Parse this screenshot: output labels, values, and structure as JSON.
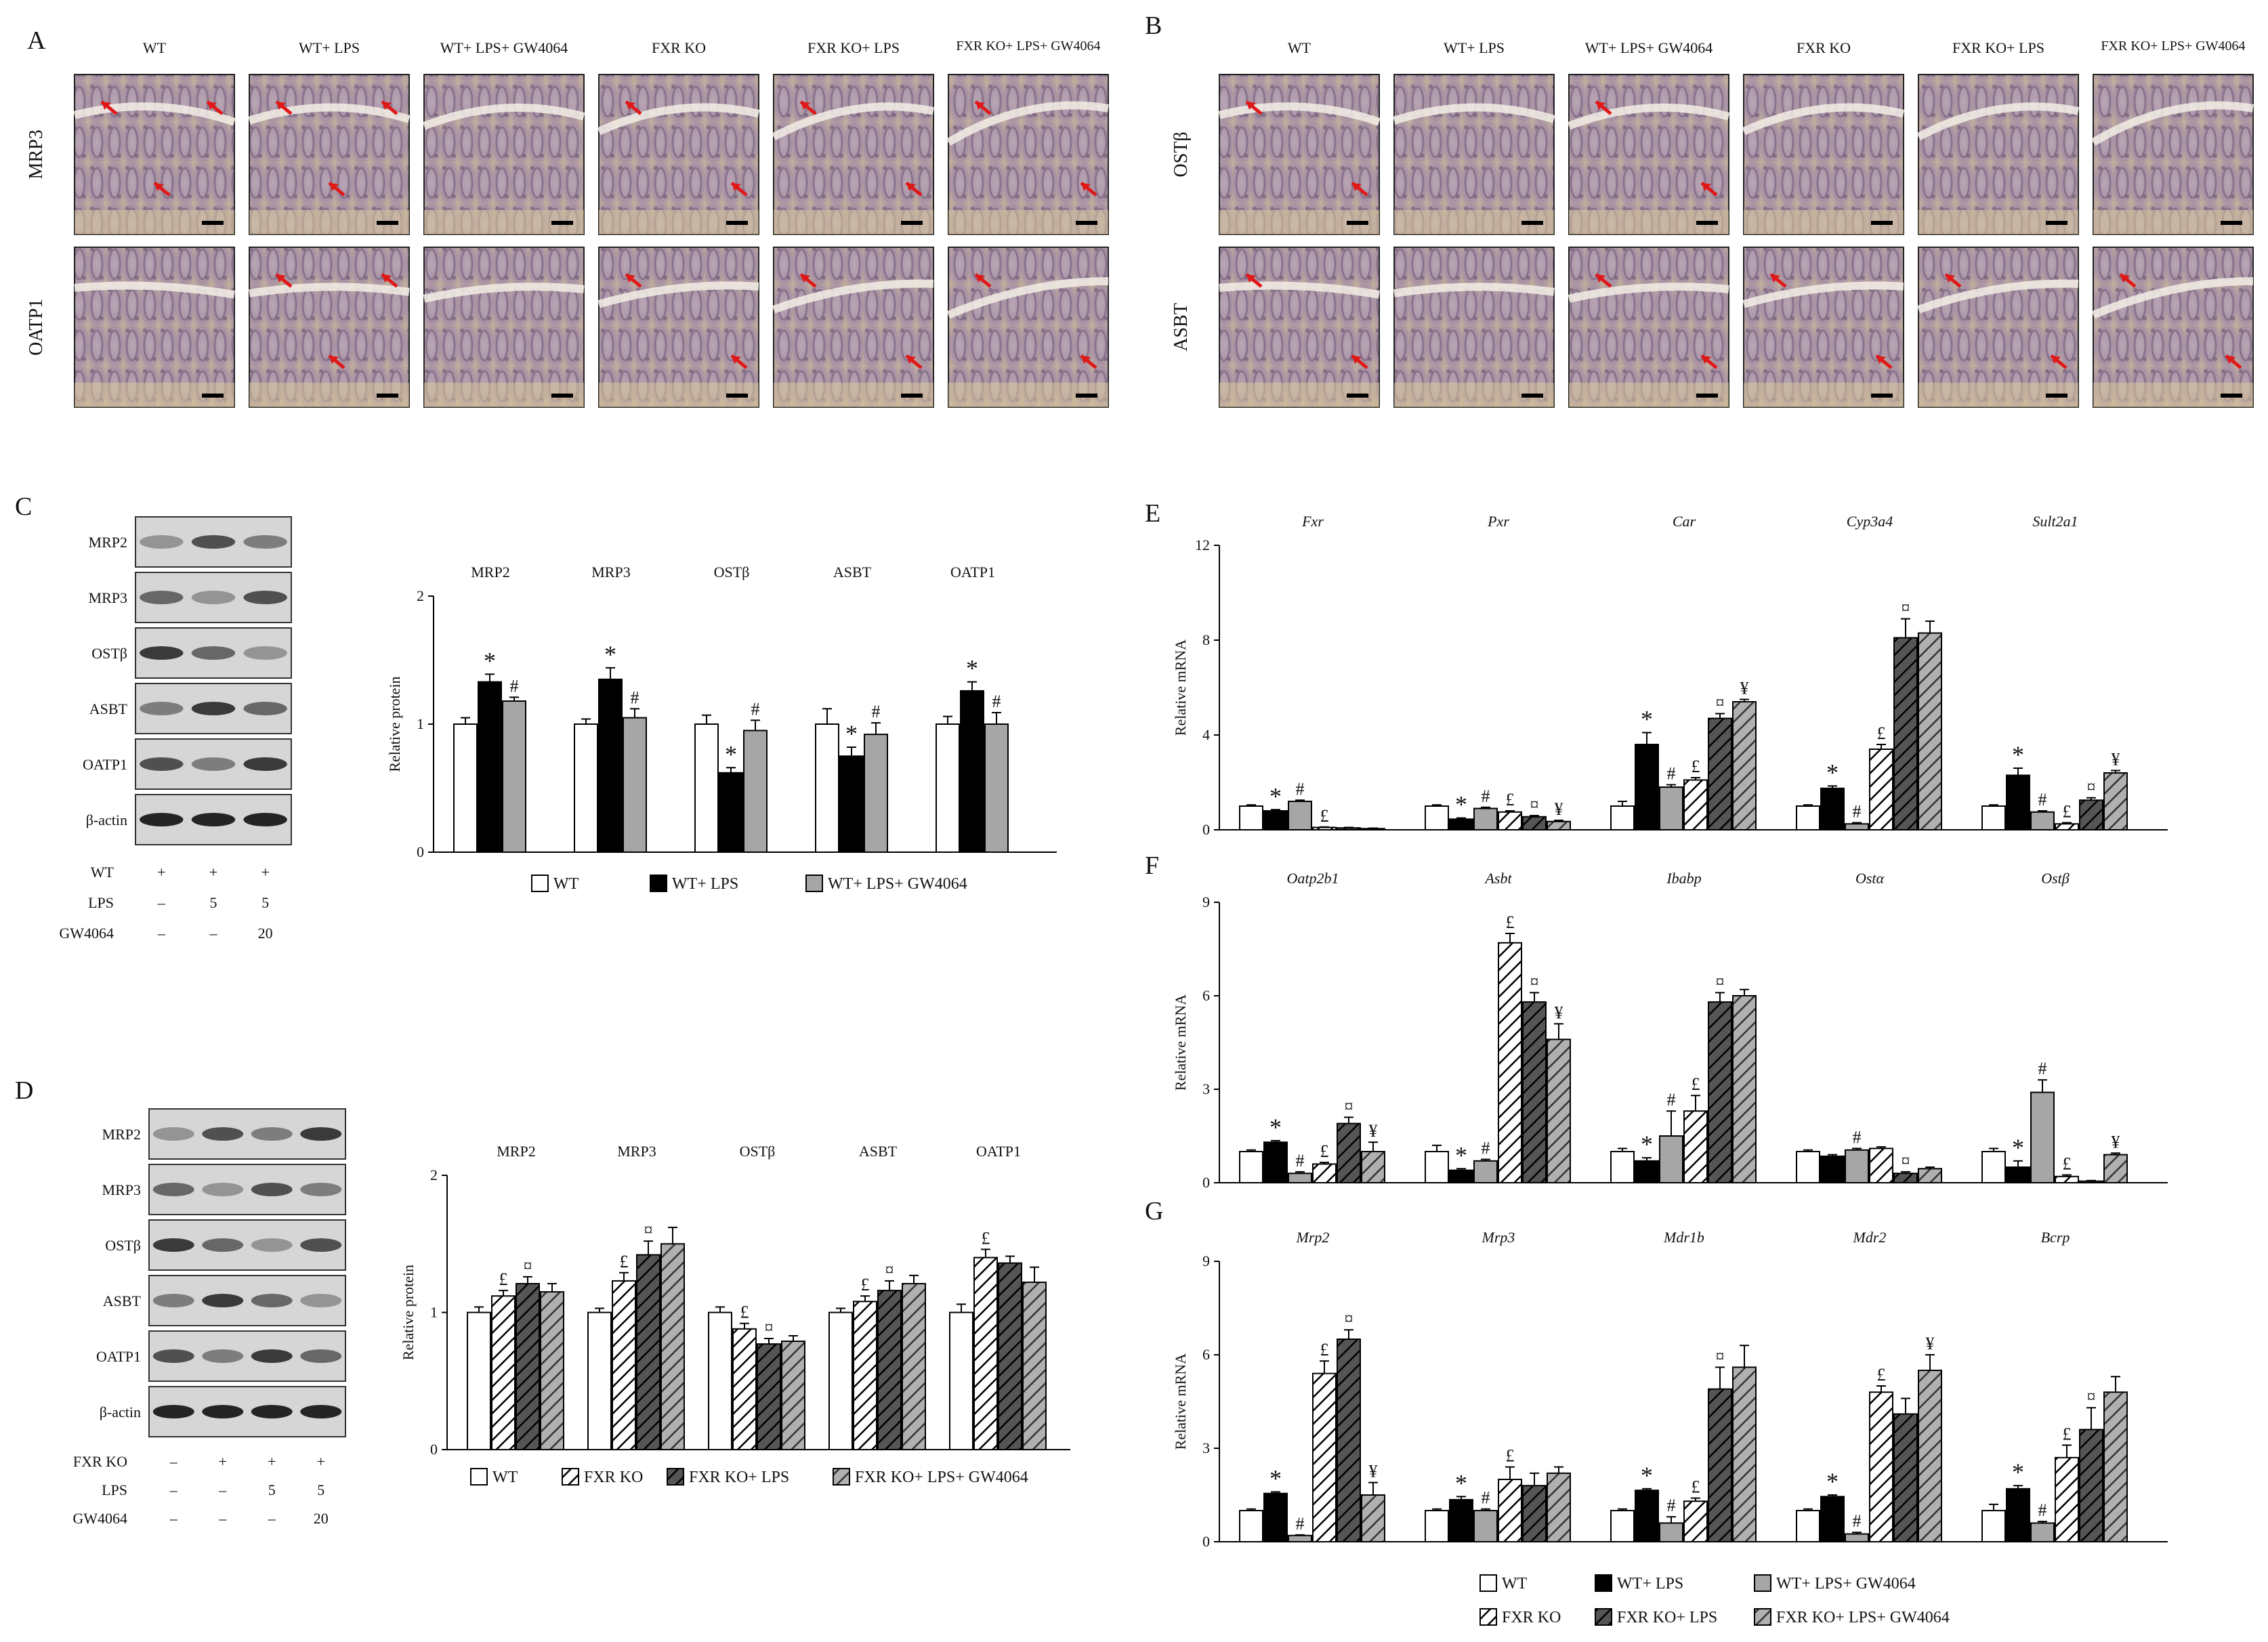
{
  "panels": {
    "A": "A",
    "B": "B",
    "C": "C",
    "D": "D",
    "E": "E",
    "F": "F",
    "G": "G"
  },
  "panel_A": {
    "columns": [
      "WT",
      "WT+ LPS",
      "WT+ LPS+ GW4064",
      "FXR KO",
      "FXR KO+ LPS",
      "FXR KO+ LPS+ GW4064"
    ],
    "rows": [
      "MRP3",
      "OATP1"
    ],
    "arrows_per_image": [
      [
        3,
        3,
        0,
        2,
        2,
        2
      ],
      [
        0,
        3,
        0,
        2,
        2,
        2
      ]
    ]
  },
  "panel_B": {
    "columns": [
      "WT",
      "WT+ LPS",
      "WT+ LPS+ GW4064",
      "FXR KO",
      "FXR KO+ LPS",
      "FXR KO+ LPS+ GW4064"
    ],
    "rows": [
      "OSTβ",
      "ASBT"
    ],
    "arrows_per_image": [
      [
        2,
        0,
        2,
        0,
        0,
        0
      ],
      [
        2,
        0,
        2,
        2,
        2,
        2
      ]
    ]
  },
  "panel_C": {
    "blot_labels": [
      "MRP2",
      "MRP3",
      "OSTβ",
      "ASBT",
      "OATP1",
      "β-actin"
    ],
    "conditions": [
      {
        "label": "WT",
        "values": [
          "+",
          "+",
          "+"
        ]
      },
      {
        "label": "LPS",
        "values": [
          "–",
          "5",
          "5"
        ]
      },
      {
        "label": "GW4064",
        "values": [
          "–",
          "–",
          "20"
        ]
      }
    ],
    "legend": [
      "WT",
      "WT+ LPS",
      "WT+ LPS+ GW4064"
    ]
  },
  "panel_D": {
    "blot_labels": [
      "MRP2",
      "MRP3",
      "OSTβ",
      "ASBT",
      "OATP1",
      "β-actin"
    ],
    "conditions": [
      {
        "label": "FXR KO",
        "values": [
          "–",
          "+",
          "+",
          "+"
        ]
      },
      {
        "label": "LPS",
        "values": [
          "–",
          "–",
          "5",
          "5"
        ]
      },
      {
        "label": "GW4064",
        "values": [
          "–",
          "–",
          "–",
          "20"
        ]
      }
    ],
    "legend": [
      "WT",
      "FXR KO",
      "FXR KO+ LPS",
      "FXR KO+ LPS+ GW4064"
    ]
  },
  "legend_EFG": [
    "WT",
    "WT+ LPS",
    "WT+ LPS+ GW4064",
    "FXR KO",
    "FXR KO+ LPS",
    "FXR KO+ LPS+ GW4064"
  ],
  "colors": {
    "wt": "#ffffff",
    "lps": "#000000",
    "gw": "#a6a6a6",
    "ko_hatch": "#ffffff",
    "ko_lps_hatch": "#555555",
    "ko_gw_hatch": "#b0b0b0",
    "arrow": "#e01818"
  },
  "chart_data": [
    {
      "id": "C",
      "type": "bar",
      "ylabel": "Relative protein",
      "ylim": [
        0,
        2
      ],
      "yticks": [
        0,
        1,
        2
      ],
      "categories": [
        "MRP2",
        "MRP3",
        "OSTβ",
        "ASBT",
        "OATP1"
      ],
      "series": [
        {
          "name": "WT",
          "values": [
            1.0,
            1.0,
            1.0,
            1.0,
            1.0
          ],
          "err": [
            0.05,
            0.04,
            0.07,
            0.12,
            0.06
          ]
        },
        {
          "name": "WT+ LPS",
          "values": [
            1.33,
            1.35,
            0.62,
            0.75,
            1.26
          ],
          "err": [
            0.06,
            0.09,
            0.04,
            0.07,
            0.07
          ]
        },
        {
          "name": "WT+ LPS+ GW4064",
          "values": [
            1.18,
            1.05,
            0.95,
            0.92,
            1.0
          ],
          "err": [
            0.03,
            0.07,
            0.08,
            0.09,
            0.09
          ]
        }
      ],
      "marks": [
        [
          "",
          "*",
          "#"
        ],
        [
          "",
          "*",
          "#"
        ],
        [
          "",
          "*",
          "#"
        ],
        [
          "",
          "*",
          "#"
        ],
        [
          "",
          "*",
          "#"
        ]
      ]
    },
    {
      "id": "D",
      "type": "bar",
      "ylabel": "Relative protein",
      "ylim": [
        0,
        2
      ],
      "yticks": [
        0,
        1,
        2
      ],
      "categories": [
        "MRP2",
        "MRP3",
        "OSTβ",
        "ASBT",
        "OATP1"
      ],
      "series": [
        {
          "name": "WT",
          "values": [
            1.0,
            1.0,
            1.0,
            1.0,
            1.0
          ],
          "err": [
            0.04,
            0.03,
            0.04,
            0.03,
            0.06
          ]
        },
        {
          "name": "FXR KO",
          "values": [
            1.12,
            1.23,
            0.88,
            1.08,
            1.4
          ],
          "err": [
            0.04,
            0.06,
            0.04,
            0.04,
            0.06
          ]
        },
        {
          "name": "FXR KO+ LPS",
          "values": [
            1.21,
            1.42,
            0.77,
            1.16,
            1.36
          ],
          "err": [
            0.05,
            0.1,
            0.04,
            0.07,
            0.05
          ]
        },
        {
          "name": "FXR KO+ LPS+ GW4064",
          "values": [
            1.15,
            1.5,
            0.79,
            1.21,
            1.22
          ],
          "err": [
            0.06,
            0.12,
            0.04,
            0.06,
            0.11
          ]
        }
      ],
      "marks": [
        [
          "",
          "£",
          "¤",
          ""
        ],
        [
          "",
          "£",
          "¤",
          ""
        ],
        [
          "",
          "£",
          "¤",
          ""
        ],
        [
          "",
          "£",
          "¤",
          ""
        ],
        [
          "",
          "£",
          "",
          ""
        ]
      ]
    },
    {
      "id": "E",
      "type": "bar",
      "ylabel": "Relative mRNA",
      "ylim": [
        0,
        12
      ],
      "yticks": [
        0,
        4,
        8,
        12
      ],
      "categories": [
        "Fxr",
        "Pxr",
        "Car",
        "Cyp3a4",
        "Sult2a1"
      ],
      "series": [
        {
          "name": "WT",
          "values": [
            1.0,
            1.0,
            1.0,
            1.0,
            1.0
          ],
          "err": [
            0.05,
            0.05,
            0.2,
            0.05,
            0.05
          ]
        },
        {
          "name": "WT+ LPS",
          "values": [
            0.8,
            0.45,
            3.6,
            1.75,
            2.3
          ],
          "err": [
            0.05,
            0.05,
            0.5,
            0.1,
            0.3
          ]
        },
        {
          "name": "WT+ LPS+ GW4064",
          "values": [
            1.2,
            0.9,
            1.8,
            0.25,
            0.75
          ],
          "err": [
            0.05,
            0.05,
            0.1,
            0.05,
            0.05
          ]
        },
        {
          "name": "FXR KO",
          "values": [
            0.1,
            0.75,
            2.1,
            3.4,
            0.25
          ],
          "err": [
            0.02,
            0.05,
            0.1,
            0.2,
            0.05
          ]
        },
        {
          "name": "FXR KO+ LPS",
          "values": [
            0.08,
            0.55,
            4.7,
            8.1,
            1.25
          ],
          "err": [
            0.02,
            0.05,
            0.2,
            0.8,
            0.1
          ]
        },
        {
          "name": "FXR KO+ LPS+ GW4064",
          "values": [
            0.05,
            0.35,
            5.4,
            8.3,
            2.4
          ],
          "err": [
            0.02,
            0.05,
            0.1,
            0.5,
            0.1
          ]
        }
      ],
      "marks": [
        [
          "",
          "*",
          "#",
          "£",
          "",
          ""
        ],
        [
          "",
          "*",
          "#",
          "£",
          "¤",
          "¥"
        ],
        [
          "",
          "*",
          "#",
          "£",
          "¤",
          "¥"
        ],
        [
          "",
          "*",
          "#",
          "£",
          "¤",
          ""
        ],
        [
          "",
          "*",
          "#",
          "£",
          "¤",
          "¥"
        ]
      ]
    },
    {
      "id": "F",
      "type": "bar",
      "ylabel": "Relative mRNA",
      "ylim": [
        0,
        9
      ],
      "yticks": [
        0,
        3,
        6,
        9
      ],
      "categories": [
        "Oatp2b1",
        "Asbt",
        "Ibabp",
        "Ostα",
        "Ostβ"
      ],
      "series": [
        {
          "name": "WT",
          "values": [
            1.0,
            1.0,
            1.0,
            1.0,
            1.0
          ],
          "err": [
            0.05,
            0.2,
            0.1,
            0.05,
            0.1
          ]
        },
        {
          "name": "WT+ LPS",
          "values": [
            1.3,
            0.4,
            0.7,
            0.85,
            0.5
          ],
          "err": [
            0.05,
            0.05,
            0.1,
            0.05,
            0.2
          ]
        },
        {
          "name": "WT+ LPS+ GW4064",
          "values": [
            0.3,
            0.7,
            1.5,
            1.05,
            2.9
          ],
          "err": [
            0.05,
            0.05,
            0.8,
            0.05,
            0.4
          ]
        },
        {
          "name": "FXR KO",
          "values": [
            0.6,
            7.7,
            2.3,
            1.1,
            0.2
          ],
          "err": [
            0.05,
            0.3,
            0.5,
            0.05,
            0.05
          ]
        },
        {
          "name": "FXR KO+ LPS",
          "values": [
            1.9,
            5.8,
            5.8,
            0.3,
            0.05
          ],
          "err": [
            0.2,
            0.3,
            0.3,
            0.05,
            0.02
          ]
        },
        {
          "name": "FXR KO+ LPS+ GW4064",
          "values": [
            1.0,
            4.6,
            6.0,
            0.45,
            0.9
          ],
          "err": [
            0.3,
            0.5,
            0.2,
            0.05,
            0.05
          ]
        }
      ],
      "marks": [
        [
          "",
          "*",
          "#",
          "£",
          "¤",
          "¥"
        ],
        [
          "",
          "*",
          "#",
          "£",
          "¤",
          "¥"
        ],
        [
          "",
          "*",
          "#",
          "£",
          "¤",
          ""
        ],
        [
          "",
          "",
          "#",
          "",
          "¤",
          ""
        ],
        [
          "",
          "*",
          "#",
          "£",
          "",
          "¥"
        ]
      ]
    },
    {
      "id": "G",
      "type": "bar",
      "ylabel": "Relative mRNA",
      "ylim": [
        0,
        9
      ],
      "yticks": [
        0,
        3,
        6,
        9
      ],
      "categories": [
        "Mrp2",
        "Mrp3",
        "Mdr1b",
        "Mdr2",
        "Bcrp"
      ],
      "series": [
        {
          "name": "WT",
          "values": [
            1.0,
            1.0,
            1.0,
            1.0,
            1.0
          ],
          "err": [
            0.05,
            0.05,
            0.05,
            0.05,
            0.2
          ]
        },
        {
          "name": "WT+ LPS",
          "values": [
            1.55,
            1.35,
            1.65,
            1.45,
            1.7
          ],
          "err": [
            0.05,
            0.1,
            0.05,
            0.05,
            0.1
          ]
        },
        {
          "name": "WT+ LPS+ GW4064",
          "values": [
            0.2,
            1.0,
            0.6,
            0.25,
            0.6
          ],
          "err": [
            0.02,
            0.05,
            0.2,
            0.05,
            0.05
          ]
        },
        {
          "name": "FXR KO",
          "values": [
            5.4,
            2.0,
            1.3,
            4.8,
            2.7
          ],
          "err": [
            0.4,
            0.4,
            0.1,
            0.2,
            0.4
          ]
        },
        {
          "name": "FXR KO+ LPS",
          "values": [
            6.5,
            1.8,
            4.9,
            4.1,
            3.6
          ],
          "err": [
            0.3,
            0.4,
            0.7,
            0.5,
            0.7
          ]
        },
        {
          "name": "FXR KO+ LPS+ GW4064",
          "values": [
            1.5,
            2.2,
            5.6,
            5.5,
            4.8
          ],
          "err": [
            0.4,
            0.2,
            0.7,
            0.5,
            0.5
          ]
        }
      ],
      "marks": [
        [
          "",
          "*",
          "#",
          "£",
          "¤",
          "¥"
        ],
        [
          "",
          "*",
          "#",
          "£",
          "",
          ""
        ],
        [
          "",
          "*",
          "#",
          "£",
          "¤",
          ""
        ],
        [
          "",
          "*",
          "#",
          "£",
          "",
          "¥"
        ],
        [
          "",
          "*",
          "#",
          "£",
          "¤",
          ""
        ]
      ]
    }
  ]
}
